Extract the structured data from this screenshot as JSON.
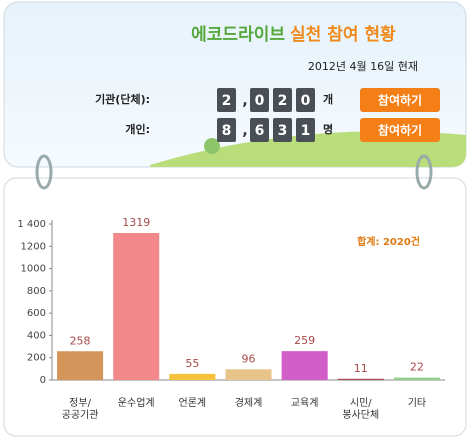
{
  "header": {
    "brand": "에코드라이브",
    "title": "실천 참여 현황",
    "date": "2012년 4월 16일 현재",
    "rows": [
      {
        "label": "기관(단체):",
        "digits": [
          "2",
          ",",
          "0",
          "2",
          "0"
        ],
        "unit": "개",
        "button": "참여하기"
      },
      {
        "label": "개인:",
        "digits": [
          "8",
          ",",
          "6",
          "3",
          "1"
        ],
        "unit": "명",
        "button": "참여하기"
      }
    ]
  },
  "chart_data": {
    "type": "bar",
    "annotation": "합계: 2020건",
    "categories": [
      "정부/\n공공기관",
      "운수업계",
      "언론계",
      "경제계",
      "교육계",
      "시민/\n봉사단체",
      "기타"
    ],
    "values": [
      258,
      1319,
      55,
      96,
      259,
      11,
      22
    ],
    "colors": [
      "#d4955a",
      "#f2888a",
      "#f4c23c",
      "#e9c48a",
      "#d25ec9",
      "#a84a4a",
      "#8fd08f"
    ],
    "ylim": [
      0,
      1400
    ],
    "yticks": [
      0,
      200,
      400,
      600,
      800,
      1000,
      1200,
      {
        "value": 1400,
        "label": "1 400"
      }
    ],
    "grid": false
  }
}
